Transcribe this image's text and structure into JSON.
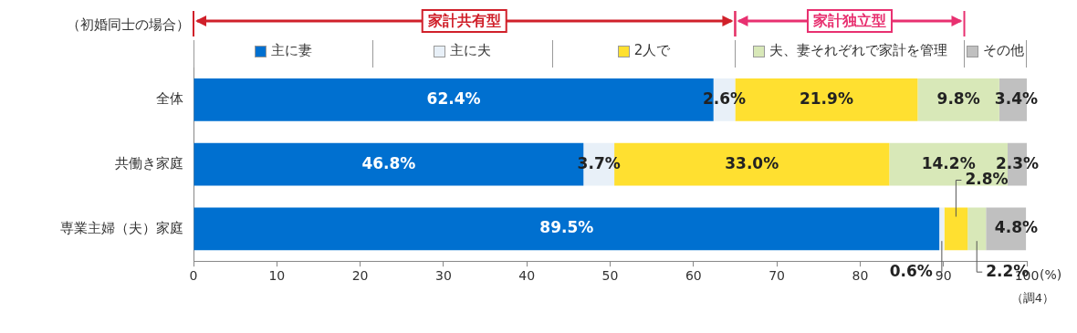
{
  "chart_data": {
    "type": "bar",
    "orientation": "horizontal",
    "stacked": true,
    "legend": "top",
    "grid": false,
    "xlabel": "(%)",
    "categories": [
      "全体",
      "共働き家庭",
      "専業主婦（夫）家庭"
    ],
    "series": [
      {
        "name": "主に妻",
        "color": "#0070d0",
        "values": [
          62.4,
          46.8,
          89.5
        ],
        "value_labels": [
          "62.4%",
          "46.8%",
          "89.5%"
        ]
      },
      {
        "name": "主に夫",
        "color": "#e8f0f8",
        "values": [
          2.6,
          3.7,
          0.6
        ],
        "value_labels": [
          "2.6%",
          "3.7%",
          "0.6%"
        ]
      },
      {
        "name": "2人で",
        "color": "#ffe030",
        "values": [
          21.9,
          33.0,
          2.8
        ],
        "value_labels": [
          "21.9%",
          "33.0%",
          "2.8%"
        ]
      },
      {
        "name": "夫、妻それぞれで家計を管理",
        "color": "#d8e8b8",
        "values": [
          9.8,
          14.2,
          2.2
        ],
        "value_labels": [
          "9.8%",
          "14.2%",
          "2.2%"
        ]
      },
      {
        "name": "その他",
        "color": "#c0c0c0",
        "values": [
          3.4,
          2.3,
          4.8
        ],
        "value_labels": [
          "3.4%",
          "2.3%",
          "4.8%"
        ]
      }
    ],
    "xlim": [
      0,
      100
    ],
    "xticks": [
      0,
      10,
      20,
      30,
      40,
      50,
      60,
      70,
      80,
      90,
      100
    ],
    "annotations": [
      "（初婚同士の場合）",
      "家計共有型",
      "家計独立型",
      "（調4）"
    ]
  }
}
